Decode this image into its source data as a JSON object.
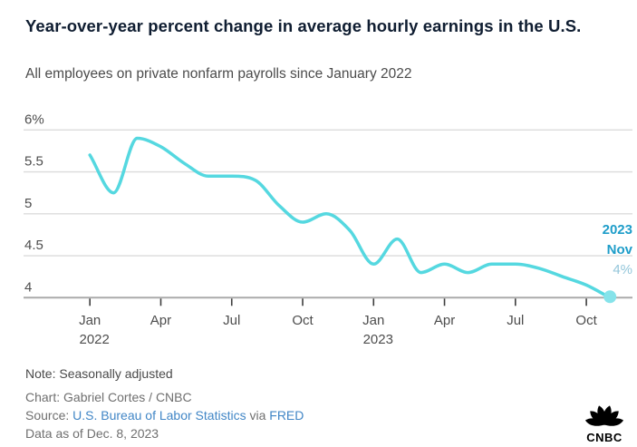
{
  "header": {
    "title": "Year-over-year percent change in average hourly earnings in the U.S.",
    "subtitle": "All employees on private nonfarm payrolls since January 2022"
  },
  "chart_data": {
    "type": "line",
    "title": "Year-over-year percent change in average hourly earnings in the U.S.",
    "subtitle": "All employees on private nonfarm payrolls since January 2022",
    "unit": "percent",
    "x": [
      "Jan 2022",
      "Feb 2022",
      "Mar 2022",
      "Apr 2022",
      "May 2022",
      "Jun 2022",
      "Jul 2022",
      "Aug 2022",
      "Sep 2022",
      "Oct 2022",
      "Nov 2022",
      "Dec 2022",
      "Jan 2023",
      "Feb 2023",
      "Mar 2023",
      "Apr 2023",
      "May 2023",
      "Jun 2023",
      "Jul 2023",
      "Aug 2023",
      "Sep 2023",
      "Oct 2023",
      "Nov 2023"
    ],
    "series": [
      {
        "name": "Year-over-year percent change in average hourly earnings",
        "values": [
          5.7,
          5.25,
          5.9,
          5.8,
          5.6,
          5.45,
          5.45,
          5.4,
          5.1,
          4.9,
          5.0,
          4.8,
          4.4,
          4.7,
          4.3,
          4.4,
          4.3,
          4.4,
          4.4,
          4.35,
          4.25,
          4.15,
          4.0
        ]
      }
    ],
    "ylim": [
      4,
      6
    ],
    "grid": true,
    "legend": "none",
    "y_gridlines": [
      {
        "label": "6%",
        "value": 6
      },
      {
        "label": "5.5",
        "value": 5.5
      },
      {
        "label": "5",
        "value": 5
      },
      {
        "label": "4.5",
        "value": 4.5
      },
      {
        "label": "4",
        "value": 4
      }
    ],
    "x_ticks": [
      {
        "label": "Jan",
        "month_index": 0,
        "year_label": "2022"
      },
      {
        "label": "Apr",
        "month_index": 3
      },
      {
        "label": "Jul",
        "month_index": 6
      },
      {
        "label": "Oct",
        "month_index": 9
      },
      {
        "label": "Jan",
        "month_index": 12,
        "year_label": "2023"
      },
      {
        "label": "Apr",
        "month_index": 15
      },
      {
        "label": "Jul",
        "month_index": 18
      },
      {
        "label": "Oct",
        "month_index": 21
      }
    ],
    "annotation": {
      "year": "2023",
      "month": "Nov",
      "value": "4%"
    },
    "colors": {
      "line": "#55d8e0",
      "end_dot": "#86e3ea",
      "annotation_strong": "#1e9dc9",
      "annotation_muted": "#93c6da"
    }
  },
  "footer": {
    "note": "Note: Seasonally adjusted",
    "credit": "Chart: Gabriel Cortes / CNBC",
    "source_prefix": "Source: ",
    "source_link_1": "U.S. Bureau of Labor Statistics",
    "source_connector": " via ",
    "source_link_2": "FRED",
    "data_as_of": "Data as of Dec. 8, 2023",
    "link_color": "#4186c6"
  },
  "logo": {
    "brand": "CNBC"
  }
}
